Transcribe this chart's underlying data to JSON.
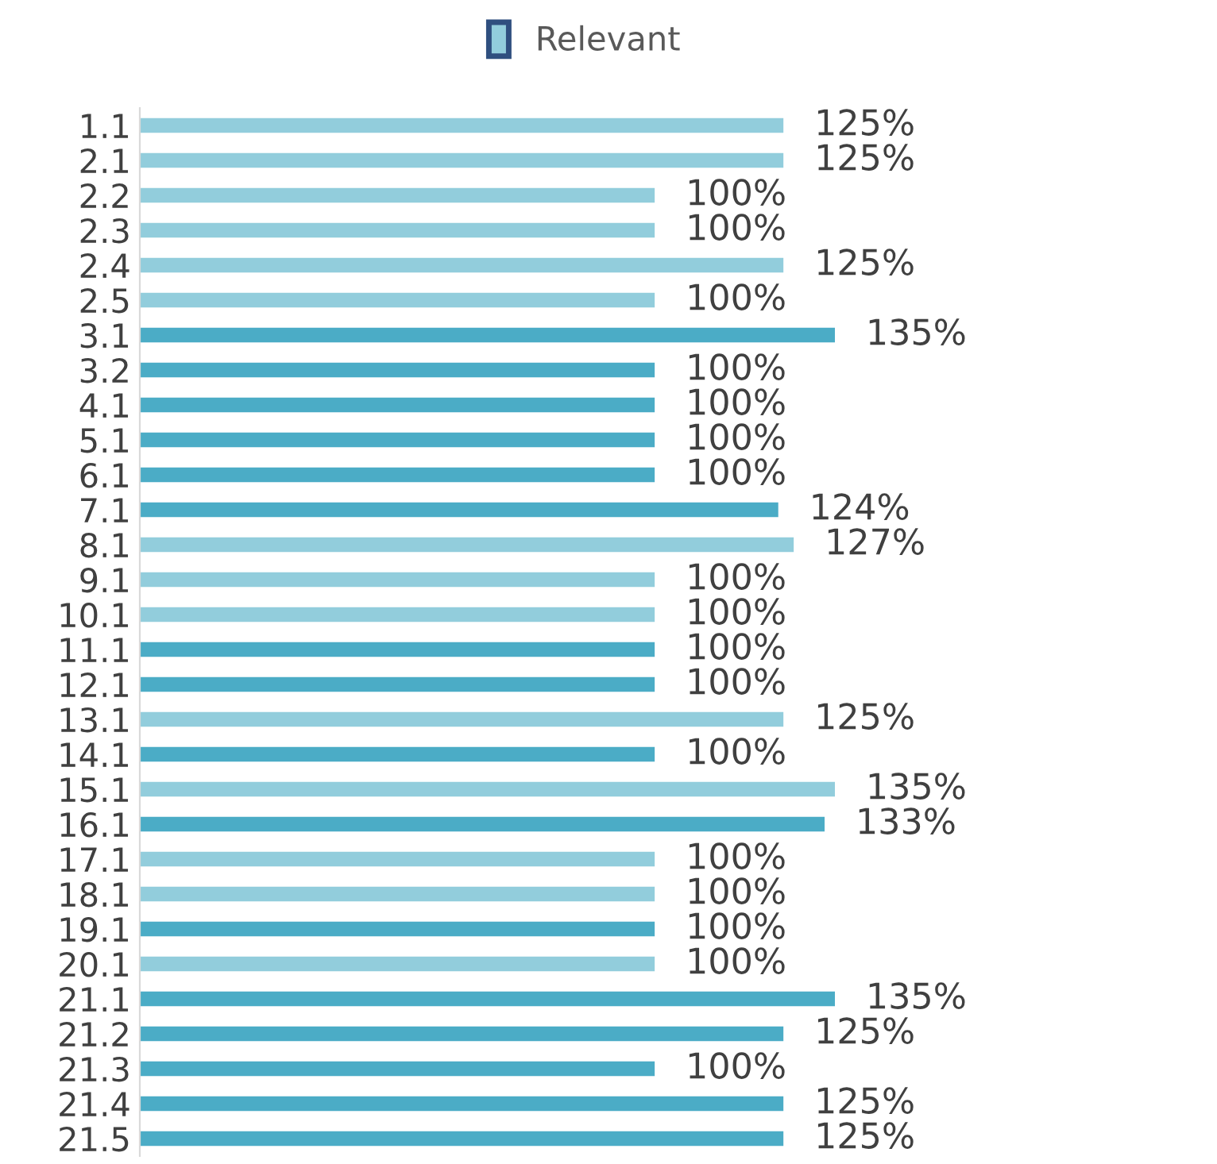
{
  "chart_data": {
    "type": "bar",
    "orientation": "horizontal",
    "legend": "top",
    "grid": false,
    "categories": [
      "1.1",
      "2.1",
      "2.2",
      "2.3",
      "2.4",
      "2.5",
      "3.1",
      "3.2",
      "4.1",
      "5.1",
      "6.1",
      "7.1",
      "8.1",
      "9.1",
      "10.1",
      "11.1",
      "12.1",
      "13.1",
      "14.1",
      "15.1",
      "16.1",
      "17.1",
      "18.1",
      "19.1",
      "20.1",
      "21.1",
      "21.2",
      "21.3",
      "21.4",
      "21.5"
    ],
    "series": [
      {
        "name": "Relevant",
        "values": [
          125,
          125,
          100,
          100,
          125,
          100,
          135,
          100,
          100,
          100,
          100,
          124,
          127,
          100,
          100,
          100,
          100,
          125,
          100,
          135,
          133,
          100,
          100,
          100,
          100,
          135,
          125,
          100,
          125,
          125
        ],
        "colors": [
          "#92cddc",
          "#92cddc",
          "#92cddc",
          "#92cddc",
          "#92cddc",
          "#92cddc",
          "#4bacc6",
          "#4bacc6",
          "#4bacc6",
          "#4bacc6",
          "#4bacc6",
          "#4bacc6",
          "#92cddc",
          "#92cddc",
          "#92cddc",
          "#4bacc6",
          "#4bacc6",
          "#92cddc",
          "#4bacc6",
          "#92cddc",
          "#4bacc6",
          "#92cddc",
          "#92cddc",
          "#4bacc6",
          "#92cddc",
          "#4bacc6",
          "#4bacc6",
          "#4bacc6",
          "#4bacc6",
          "#4bacc6"
        ],
        "value_labels": [
          "125%",
          "125%",
          "100%",
          "100%",
          "125%",
          "100%",
          "135%",
          "100%",
          "100%",
          "100%",
          "100%",
          "124%",
          "127%",
          "100%",
          "100%",
          "100%",
          "100%",
          "125%",
          "100%",
          "135%",
          "133%",
          "100%",
          "100%",
          "100%",
          "100%",
          "135%",
          "125%",
          "100%",
          "125%",
          "125%"
        ]
      }
    ]
  }
}
